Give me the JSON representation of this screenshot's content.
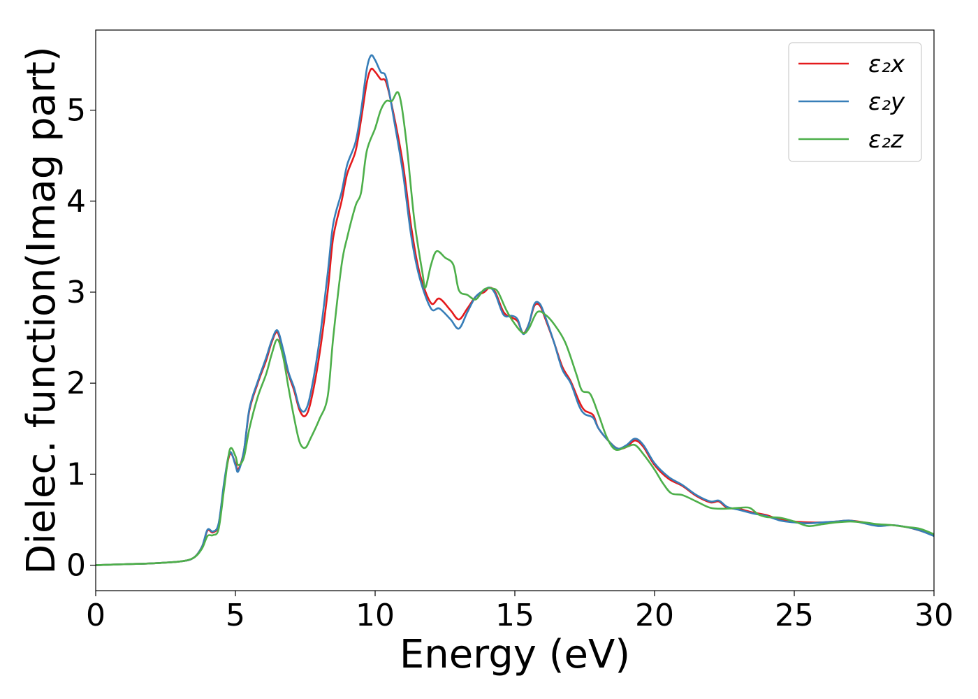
{
  "chart_data": {
    "type": "line",
    "title": "",
    "xlabel": "Energy (eV)",
    "ylabel": "Dielec. function(Imag part)",
    "xlim": [
      0,
      30
    ],
    "ylim": [
      -0.28,
      5.88
    ],
    "xticks": [
      "0",
      "5",
      "10",
      "15",
      "20",
      "25",
      "30"
    ],
    "yticks": [
      "0",
      "1",
      "2",
      "3",
      "4",
      "5"
    ],
    "grid": false,
    "legend_position": "top-right",
    "series": [
      {
        "name": "ε₂x",
        "color": "#e41a1c",
        "points": [
          [
            0,
            0
          ],
          [
            1,
            0.01
          ],
          [
            2,
            0.02
          ],
          [
            3,
            0.04
          ],
          [
            3.5,
            0.08
          ],
          [
            3.8,
            0.2
          ],
          [
            4.0,
            0.38
          ],
          [
            4.2,
            0.36
          ],
          [
            4.4,
            0.45
          ],
          [
            4.6,
            0.9
          ],
          [
            4.8,
            1.22
          ],
          [
            5.0,
            1.12
          ],
          [
            5.1,
            1.05
          ],
          [
            5.3,
            1.25
          ],
          [
            5.5,
            1.7
          ],
          [
            5.8,
            2.0
          ],
          [
            6.1,
            2.25
          ],
          [
            6.3,
            2.45
          ],
          [
            6.5,
            2.56
          ],
          [
            6.7,
            2.35
          ],
          [
            6.9,
            2.1
          ],
          [
            7.1,
            1.92
          ],
          [
            7.3,
            1.7
          ],
          [
            7.5,
            1.64
          ],
          [
            7.7,
            1.8
          ],
          [
            8.0,
            2.3
          ],
          [
            8.3,
            3.0
          ],
          [
            8.5,
            3.6
          ],
          [
            8.8,
            4.0
          ],
          [
            9.0,
            4.3
          ],
          [
            9.3,
            4.55
          ],
          [
            9.5,
            4.9
          ],
          [
            9.7,
            5.3
          ],
          [
            9.85,
            5.45
          ],
          [
            10.0,
            5.42
          ],
          [
            10.2,
            5.34
          ],
          [
            10.4,
            5.3
          ],
          [
            10.7,
            4.9
          ],
          [
            11.0,
            4.4
          ],
          [
            11.3,
            3.7
          ],
          [
            11.6,
            3.2
          ],
          [
            12.0,
            2.88
          ],
          [
            12.3,
            2.93
          ],
          [
            12.7,
            2.8
          ],
          [
            13.0,
            2.7
          ],
          [
            13.3,
            2.82
          ],
          [
            13.6,
            2.95
          ],
          [
            13.9,
            3.0
          ],
          [
            14.1,
            3.05
          ],
          [
            14.3,
            3.0
          ],
          [
            14.6,
            2.78
          ],
          [
            14.9,
            2.72
          ],
          [
            15.1,
            2.68
          ],
          [
            15.3,
            2.55
          ],
          [
            15.5,
            2.65
          ],
          [
            15.7,
            2.85
          ],
          [
            15.9,
            2.85
          ],
          [
            16.1,
            2.7
          ],
          [
            16.4,
            2.45
          ],
          [
            16.7,
            2.18
          ],
          [
            17.0,
            2.02
          ],
          [
            17.3,
            1.8
          ],
          [
            17.5,
            1.7
          ],
          [
            17.8,
            1.65
          ],
          [
            18.0,
            1.5
          ],
          [
            18.4,
            1.35
          ],
          [
            18.7,
            1.28
          ],
          [
            19.0,
            1.3
          ],
          [
            19.3,
            1.37
          ],
          [
            19.6,
            1.3
          ],
          [
            20.0,
            1.1
          ],
          [
            20.5,
            0.95
          ],
          [
            21.0,
            0.87
          ],
          [
            21.5,
            0.76
          ],
          [
            22.0,
            0.69
          ],
          [
            22.3,
            0.7
          ],
          [
            22.6,
            0.63
          ],
          [
            23.0,
            0.62
          ],
          [
            23.5,
            0.58
          ],
          [
            24.0,
            0.55
          ],
          [
            24.5,
            0.5
          ],
          [
            25.0,
            0.48
          ],
          [
            25.5,
            0.47
          ],
          [
            26.0,
            0.47
          ],
          [
            26.5,
            0.48
          ],
          [
            27.0,
            0.49
          ],
          [
            27.5,
            0.47
          ],
          [
            28.0,
            0.44
          ],
          [
            28.5,
            0.44
          ],
          [
            29.0,
            0.42
          ],
          [
            29.5,
            0.38
          ],
          [
            30.0,
            0.33
          ]
        ]
      },
      {
        "name": "ε₂y",
        "color": "#377eb8",
        "points": [
          [
            0,
            0
          ],
          [
            1,
            0.01
          ],
          [
            2,
            0.02
          ],
          [
            3,
            0.04
          ],
          [
            3.5,
            0.08
          ],
          [
            3.8,
            0.2
          ],
          [
            4.0,
            0.39
          ],
          [
            4.2,
            0.37
          ],
          [
            4.4,
            0.46
          ],
          [
            4.6,
            0.92
          ],
          [
            4.8,
            1.24
          ],
          [
            5.0,
            1.1
          ],
          [
            5.1,
            1.03
          ],
          [
            5.3,
            1.25
          ],
          [
            5.5,
            1.72
          ],
          [
            5.8,
            2.02
          ],
          [
            6.1,
            2.28
          ],
          [
            6.3,
            2.47
          ],
          [
            6.5,
            2.58
          ],
          [
            6.7,
            2.38
          ],
          [
            6.9,
            2.12
          ],
          [
            7.1,
            1.95
          ],
          [
            7.3,
            1.73
          ],
          [
            7.5,
            1.7
          ],
          [
            7.7,
            1.9
          ],
          [
            8.0,
            2.45
          ],
          [
            8.3,
            3.2
          ],
          [
            8.5,
            3.75
          ],
          [
            8.8,
            4.1
          ],
          [
            9.0,
            4.4
          ],
          [
            9.3,
            4.65
          ],
          [
            9.5,
            5.0
          ],
          [
            9.7,
            5.45
          ],
          [
            9.85,
            5.6
          ],
          [
            10.0,
            5.55
          ],
          [
            10.2,
            5.42
          ],
          [
            10.4,
            5.35
          ],
          [
            10.7,
            4.85
          ],
          [
            11.0,
            4.3
          ],
          [
            11.3,
            3.6
          ],
          [
            11.6,
            3.15
          ],
          [
            12.0,
            2.82
          ],
          [
            12.3,
            2.82
          ],
          [
            12.7,
            2.7
          ],
          [
            13.0,
            2.6
          ],
          [
            13.3,
            2.78
          ],
          [
            13.6,
            2.95
          ],
          [
            13.9,
            3.02
          ],
          [
            14.1,
            3.05
          ],
          [
            14.3,
            2.98
          ],
          [
            14.6,
            2.75
          ],
          [
            14.9,
            2.74
          ],
          [
            15.1,
            2.7
          ],
          [
            15.3,
            2.54
          ],
          [
            15.5,
            2.65
          ],
          [
            15.7,
            2.87
          ],
          [
            15.9,
            2.87
          ],
          [
            16.1,
            2.72
          ],
          [
            16.4,
            2.45
          ],
          [
            16.7,
            2.15
          ],
          [
            17.0,
            2.0
          ],
          [
            17.3,
            1.75
          ],
          [
            17.5,
            1.66
          ],
          [
            17.8,
            1.62
          ],
          [
            18.0,
            1.5
          ],
          [
            18.4,
            1.35
          ],
          [
            18.7,
            1.28
          ],
          [
            19.0,
            1.32
          ],
          [
            19.3,
            1.39
          ],
          [
            19.6,
            1.32
          ],
          [
            20.0,
            1.12
          ],
          [
            20.5,
            0.97
          ],
          [
            21.0,
            0.88
          ],
          [
            21.5,
            0.77
          ],
          [
            22.0,
            0.7
          ],
          [
            22.3,
            0.71
          ],
          [
            22.6,
            0.64
          ],
          [
            23.0,
            0.61
          ],
          [
            23.5,
            0.57
          ],
          [
            24.0,
            0.54
          ],
          [
            24.5,
            0.49
          ],
          [
            25.0,
            0.47
          ],
          [
            25.5,
            0.46
          ],
          [
            26.0,
            0.47
          ],
          [
            26.5,
            0.48
          ],
          [
            27.0,
            0.49
          ],
          [
            27.5,
            0.46
          ],
          [
            28.0,
            0.43
          ],
          [
            28.5,
            0.44
          ],
          [
            29.0,
            0.42
          ],
          [
            29.5,
            0.38
          ],
          [
            30.0,
            0.32
          ]
        ]
      },
      {
        "name": "ε₂z",
        "color": "#4daf4a",
        "points": [
          [
            0,
            0
          ],
          [
            1,
            0.01
          ],
          [
            2,
            0.02
          ],
          [
            3,
            0.04
          ],
          [
            3.5,
            0.08
          ],
          [
            3.8,
            0.18
          ],
          [
            4.0,
            0.32
          ],
          [
            4.2,
            0.33
          ],
          [
            4.4,
            0.4
          ],
          [
            4.6,
            0.85
          ],
          [
            4.8,
            1.27
          ],
          [
            5.0,
            1.2
          ],
          [
            5.1,
            1.1
          ],
          [
            5.3,
            1.18
          ],
          [
            5.5,
            1.5
          ],
          [
            5.8,
            1.85
          ],
          [
            6.1,
            2.1
          ],
          [
            6.3,
            2.32
          ],
          [
            6.5,
            2.48
          ],
          [
            6.7,
            2.3
          ],
          [
            6.9,
            1.95
          ],
          [
            7.1,
            1.62
          ],
          [
            7.3,
            1.35
          ],
          [
            7.5,
            1.29
          ],
          [
            7.7,
            1.4
          ],
          [
            8.0,
            1.6
          ],
          [
            8.3,
            1.85
          ],
          [
            8.5,
            2.5
          ],
          [
            8.8,
            3.3
          ],
          [
            9.0,
            3.6
          ],
          [
            9.3,
            3.95
          ],
          [
            9.5,
            4.1
          ],
          [
            9.7,
            4.55
          ],
          [
            10.0,
            4.8
          ],
          [
            10.2,
            5.0
          ],
          [
            10.4,
            5.1
          ],
          [
            10.6,
            5.1
          ],
          [
            10.85,
            5.18
          ],
          [
            11.1,
            4.7
          ],
          [
            11.4,
            3.8
          ],
          [
            11.7,
            3.2
          ],
          [
            11.8,
            3.05
          ],
          [
            12.0,
            3.3
          ],
          [
            12.2,
            3.45
          ],
          [
            12.5,
            3.38
          ],
          [
            12.8,
            3.3
          ],
          [
            13.0,
            3.02
          ],
          [
            13.3,
            2.97
          ],
          [
            13.6,
            2.92
          ],
          [
            13.9,
            3.03
          ],
          [
            14.2,
            3.04
          ],
          [
            14.4,
            3.0
          ],
          [
            14.7,
            2.8
          ],
          [
            15.0,
            2.65
          ],
          [
            15.3,
            2.55
          ],
          [
            15.5,
            2.6
          ],
          [
            15.8,
            2.78
          ],
          [
            16.1,
            2.75
          ],
          [
            16.4,
            2.65
          ],
          [
            16.8,
            2.45
          ],
          [
            17.2,
            2.1
          ],
          [
            17.4,
            1.92
          ],
          [
            17.7,
            1.88
          ],
          [
            18.0,
            1.65
          ],
          [
            18.3,
            1.4
          ],
          [
            18.6,
            1.27
          ],
          [
            19.0,
            1.3
          ],
          [
            19.3,
            1.32
          ],
          [
            19.6,
            1.22
          ],
          [
            20.0,
            1.05
          ],
          [
            20.3,
            0.9
          ],
          [
            20.6,
            0.79
          ],
          [
            21.0,
            0.77
          ],
          [
            21.5,
            0.7
          ],
          [
            22.0,
            0.63
          ],
          [
            22.5,
            0.62
          ],
          [
            23.0,
            0.63
          ],
          [
            23.4,
            0.63
          ],
          [
            23.7,
            0.56
          ],
          [
            24.0,
            0.53
          ],
          [
            24.5,
            0.52
          ],
          [
            25.0,
            0.48
          ],
          [
            25.5,
            0.43
          ],
          [
            26.0,
            0.45
          ],
          [
            26.5,
            0.47
          ],
          [
            27.0,
            0.48
          ],
          [
            27.5,
            0.47
          ],
          [
            28.0,
            0.45
          ],
          [
            28.5,
            0.44
          ],
          [
            29.0,
            0.42
          ],
          [
            29.5,
            0.4
          ],
          [
            30.0,
            0.34
          ]
        ]
      }
    ]
  }
}
